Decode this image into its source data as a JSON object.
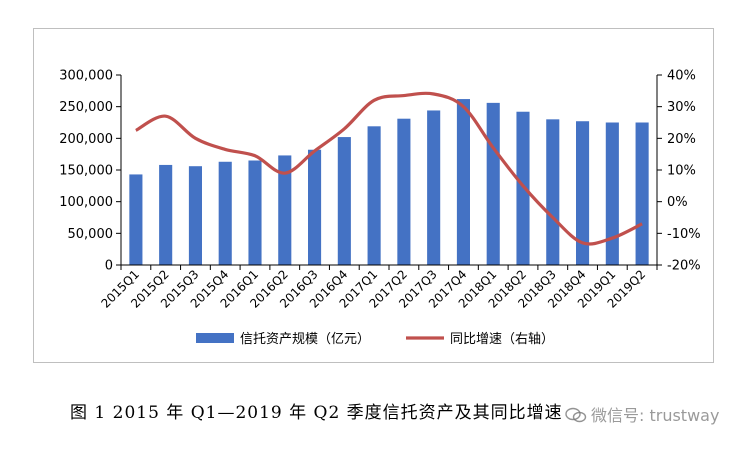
{
  "chart_data": {
    "type": "bar+line",
    "categories": [
      "2015Q1",
      "2015Q2",
      "2015Q3",
      "2015Q4",
      "2016Q1",
      "2016Q2",
      "2016Q3",
      "2016Q4",
      "2017Q1",
      "2017Q2",
      "2017Q3",
      "2017Q4",
      "2018Q1",
      "2018Q2",
      "2018Q3",
      "2018Q4",
      "2019Q1",
      "2019Q2"
    ],
    "series": [
      {
        "name": "信托资产规模（亿元）",
        "type": "bar",
        "axis": "left",
        "color": "#4472c4",
        "values": [
          143000,
          158000,
          156000,
          163000,
          165000,
          173000,
          182000,
          202000,
          219000,
          231000,
          244000,
          262000,
          256000,
          242000,
          230000,
          227000,
          225000,
          225000
        ]
      },
      {
        "name": "同比增速（右轴）",
        "type": "line",
        "axis": "right",
        "color": "#c0504d",
        "values": [
          22.5,
          27,
          20,
          16.5,
          14.5,
          9,
          16,
          23,
          32,
          33.5,
          34,
          30,
          17,
          5,
          -5,
          -13,
          -11.5,
          -7
        ]
      }
    ],
    "y_left": {
      "min": 0,
      "max": 300000,
      "ticks": [
        "0",
        "50,000",
        "100,000",
        "150,000",
        "200,000",
        "250,000",
        "300,000"
      ]
    },
    "y_right": {
      "min": -20,
      "max": 40,
      "ticks": [
        "-20%",
        "-10%",
        "0%",
        "10%",
        "20%",
        "30%",
        "40%"
      ]
    },
    "grid": false,
    "legend_position": "bottom"
  },
  "caption": "图 1   2015 年 Q1—2019 年 Q2 季度信托资产及其同比增速",
  "watermark": "微信号: trustway"
}
